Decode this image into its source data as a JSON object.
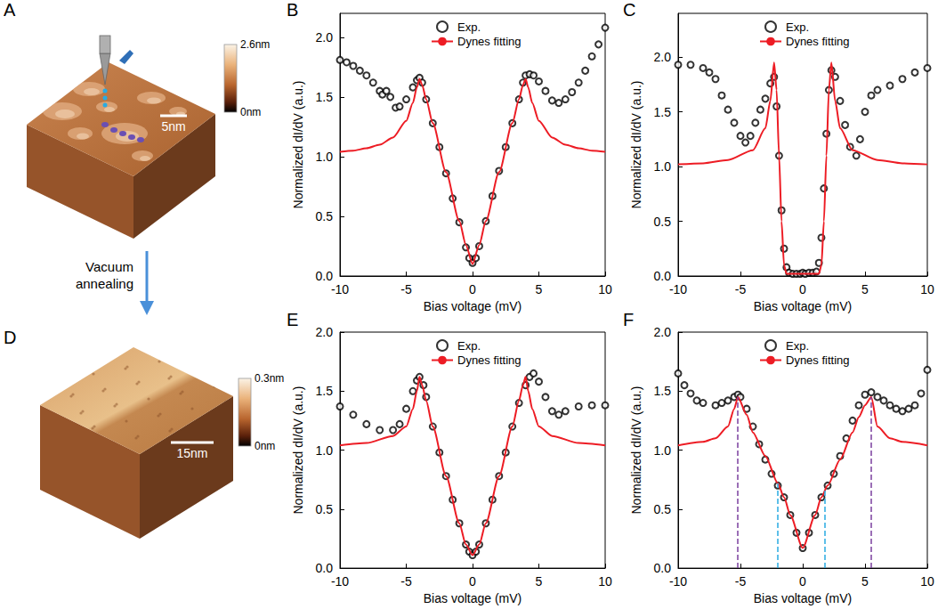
{
  "chart_data": [
    {
      "panel": "B",
      "type": "line",
      "x_label": "Bias voltage (mV)",
      "y_label": "Normalized dI/dV (a.u.)",
      "xlim": [
        -10,
        10
      ],
      "xticks": [
        -10,
        -5,
        0,
        5,
        10
      ],
      "ylim": [
        0,
        2.2
      ],
      "yticks": [
        {
          "value": 0,
          "label": "0.0"
        },
        {
          "value": 0.5,
          "label": "0.5"
        },
        {
          "value": 1,
          "label": "1.0"
        },
        {
          "value": 1.5,
          "label": "1.5"
        },
        {
          "value": 2,
          "label": "2.0"
        }
      ],
      "grid": false,
      "legend": "top",
      "series": [
        {
          "name": "Exp.",
          "type": "scatter",
          "marker": "circle_open",
          "color": "#000000",
          "x": [
            -10,
            -9.5,
            -9,
            -8.5,
            -8,
            -7.5,
            -7,
            -6.8,
            -6.5,
            -6.2,
            -5.8,
            -5.5,
            -5,
            -4.5,
            -4.2,
            -4,
            -3.8,
            -3.5,
            -3,
            -2.5,
            -2,
            -1.5,
            -1,
            -0.5,
            -0.25,
            0,
            0.25,
            0.5,
            1,
            1.5,
            2,
            2.5,
            3,
            3.5,
            3.8,
            4,
            4.3,
            4.6,
            5,
            5.5,
            6,
            6.5,
            7,
            7.5,
            8,
            8.5,
            9,
            9.5,
            10
          ],
          "values": [
            1.81,
            1.79,
            1.76,
            1.72,
            1.68,
            1.62,
            1.55,
            1.52,
            1.55,
            1.5,
            1.41,
            1.42,
            1.48,
            1.58,
            1.64,
            1.66,
            1.62,
            1.48,
            1.28,
            1.08,
            0.86,
            0.65,
            0.45,
            0.24,
            0.15,
            0.11,
            0.15,
            0.25,
            0.46,
            0.67,
            0.88,
            1.08,
            1.28,
            1.48,
            1.62,
            1.68,
            1.69,
            1.68,
            1.63,
            1.55,
            1.47,
            1.45,
            1.48,
            1.54,
            1.62,
            1.72,
            1.84,
            1.94,
            2.08
          ]
        },
        {
          "name": "Dynes fitting",
          "type": "line",
          "line_style": "solid",
          "color": "#ed1c24",
          "x": [
            -10,
            -9,
            -8,
            -7,
            -6,
            -5,
            -4.5,
            -4.2,
            -4,
            -3.8,
            -3.5,
            -3,
            -2,
            -1,
            -0.5,
            0,
            0.5,
            1,
            2,
            3,
            3.5,
            3.8,
            4,
            4.2,
            4.5,
            5,
            6,
            7,
            8,
            9,
            10
          ],
          "values": [
            1.04,
            1.05,
            1.07,
            1.1,
            1.16,
            1.3,
            1.45,
            1.58,
            1.65,
            1.6,
            1.48,
            1.28,
            0.87,
            0.46,
            0.26,
            0.1,
            0.26,
            0.46,
            0.87,
            1.28,
            1.48,
            1.6,
            1.65,
            1.58,
            1.45,
            1.3,
            1.16,
            1.1,
            1.07,
            1.05,
            1.04
          ]
        }
      ]
    },
    {
      "panel": "C",
      "type": "line",
      "x_label": "Bias voltage (mV)",
      "y_label": "Normalized dI/dV (a.u.)",
      "xlim": [
        -10,
        10
      ],
      "xticks": [
        -10,
        -5,
        0,
        5,
        10
      ],
      "ylim": [
        0,
        2.4
      ],
      "yticks": [
        {
          "value": 0,
          "label": "0.0"
        },
        {
          "value": 0.5,
          "label": "0.5"
        },
        {
          "value": 1,
          "label": "1.0"
        },
        {
          "value": 1.5,
          "label": "1.5"
        },
        {
          "value": 2,
          "label": "2.0"
        }
      ],
      "grid": false,
      "legend": "top",
      "series": [
        {
          "name": "Exp.",
          "type": "scatter",
          "marker": "circle_open",
          "color": "#000000",
          "x": [
            -10,
            -9,
            -8,
            -7.5,
            -7,
            -6.5,
            -6,
            -5.5,
            -5,
            -4.6,
            -4.2,
            -3.8,
            -3.4,
            -3,
            -2.6,
            -2.3,
            -2.1,
            -1.9,
            -1.7,
            -1.5,
            -1.3,
            -1.1,
            -0.8,
            -0.5,
            -0.2,
            0,
            0.2,
            0.5,
            0.8,
            1.1,
            1.3,
            1.5,
            1.7,
            1.9,
            2.1,
            2.3,
            2.6,
            3,
            3.4,
            3.8,
            4.3,
            4.6,
            5,
            5.5,
            6,
            7,
            8,
            9,
            10
          ],
          "values": [
            1.93,
            1.93,
            1.9,
            1.86,
            1.8,
            1.65,
            1.52,
            1.4,
            1.28,
            1.22,
            1.28,
            1.4,
            1.52,
            1.62,
            1.76,
            1.82,
            1.55,
            1.1,
            0.6,
            0.25,
            0.08,
            0.03,
            0.02,
            0.02,
            0.02,
            0.03,
            0.02,
            0.03,
            0.03,
            0.04,
            0.12,
            0.35,
            0.8,
            1.3,
            1.7,
            1.88,
            1.82,
            1.6,
            1.38,
            1.18,
            1.1,
            1.25,
            1.5,
            1.65,
            1.7,
            1.74,
            1.8,
            1.86,
            1.9
          ]
        },
        {
          "name": "Dynes fitting",
          "type": "line",
          "line_style": "solid",
          "color": "#ed1c24",
          "x": [
            -10,
            -8,
            -6,
            -4,
            -3,
            -2.6,
            -2.3,
            -2.1,
            -1.9,
            -1.7,
            -1.5,
            -1.3,
            -1,
            0,
            1,
            1.3,
            1.5,
            1.7,
            1.9,
            2.1,
            2.3,
            2.6,
            3,
            4,
            6,
            8,
            10
          ],
          "values": [
            1.02,
            1.03,
            1.06,
            1.15,
            1.35,
            1.6,
            1.95,
            1.7,
            1.1,
            0.5,
            0.1,
            0.02,
            0.02,
            0.02,
            0.02,
            0.02,
            0.1,
            0.5,
            1.1,
            1.7,
            1.95,
            1.6,
            1.35,
            1.15,
            1.06,
            1.03,
            1.02
          ]
        }
      ]
    },
    {
      "panel": "E",
      "type": "line",
      "x_label": "Bias voltage (mV)",
      "y_label": "Normalized dI/dV (a.u.)",
      "xlim": [
        -10,
        10
      ],
      "xticks": [
        -10,
        -5,
        0,
        5,
        10
      ],
      "ylim": [
        0,
        2
      ],
      "yticks": [
        {
          "value": 0,
          "label": "0.0"
        },
        {
          "value": 0.5,
          "label": "0.5"
        },
        {
          "value": 1,
          "label": "1.0"
        },
        {
          "value": 1.5,
          "label": "1.5"
        },
        {
          "value": 2,
          "label": "2.0"
        }
      ],
      "grid": false,
      "legend": "top",
      "series": [
        {
          "name": "Exp.",
          "type": "scatter",
          "marker": "circle_open",
          "color": "#000000",
          "x": [
            -10,
            -9,
            -8,
            -7,
            -6,
            -5.5,
            -5,
            -4.5,
            -4.2,
            -4,
            -3.7,
            -3.5,
            -3,
            -2.5,
            -2,
            -1.5,
            -1,
            -0.5,
            -0.25,
            0,
            0.25,
            0.5,
            1,
            1.5,
            2,
            2.5,
            3,
            3.5,
            4,
            4.3,
            4.6,
            5,
            5.5,
            6,
            6.5,
            7,
            8,
            9,
            10
          ],
          "values": [
            1.37,
            1.3,
            1.22,
            1.17,
            1.17,
            1.22,
            1.35,
            1.5,
            1.59,
            1.62,
            1.55,
            1.45,
            1.2,
            0.98,
            0.78,
            0.58,
            0.38,
            0.2,
            0.14,
            0.11,
            0.14,
            0.2,
            0.38,
            0.58,
            0.78,
            0.98,
            1.2,
            1.4,
            1.55,
            1.62,
            1.65,
            1.58,
            1.45,
            1.33,
            1.3,
            1.33,
            1.37,
            1.38,
            1.38
          ]
        },
        {
          "name": "Dynes fitting",
          "type": "line",
          "line_style": "solid",
          "color": "#ed1c24",
          "x": [
            -10,
            -8,
            -6,
            -5,
            -4.5,
            -4.2,
            -4,
            -3.8,
            -3.5,
            -3,
            -2,
            -1,
            -0.5,
            0,
            0.5,
            1,
            2,
            3,
            3.5,
            3.8,
            4,
            4.2,
            4.5,
            5,
            6,
            8,
            10
          ],
          "values": [
            1.04,
            1.06,
            1.12,
            1.2,
            1.35,
            1.5,
            1.62,
            1.55,
            1.42,
            1.2,
            0.78,
            0.38,
            0.2,
            0.11,
            0.2,
            0.38,
            0.78,
            1.2,
            1.42,
            1.55,
            1.62,
            1.5,
            1.35,
            1.2,
            1.12,
            1.06,
            1.04
          ]
        }
      ]
    },
    {
      "panel": "F",
      "type": "line",
      "x_label": "Bias voltage (mV)",
      "y_label": "Normalized dI/dV (a.u.)",
      "xlim": [
        -10,
        10
      ],
      "xticks": [
        -10,
        -5,
        0,
        5,
        10
      ],
      "ylim": [
        0,
        2
      ],
      "yticks": [
        {
          "value": 0,
          "label": "0.0"
        },
        {
          "value": 0.5,
          "label": "0.5"
        },
        {
          "value": 1,
          "label": "1.0"
        },
        {
          "value": 1.5,
          "label": "1.5"
        },
        {
          "value": 2,
          "label": "2.0"
        }
      ],
      "grid": false,
      "legend": "top",
      "series": [
        {
          "name": "Exp.",
          "type": "scatter",
          "marker": "circle_open",
          "color": "#000000",
          "x": [
            -10,
            -9.5,
            -9,
            -8.5,
            -8,
            -7,
            -6.5,
            -6,
            -5.5,
            -5.2,
            -5,
            -4.5,
            -4,
            -3.5,
            -3,
            -2.5,
            -2,
            -1.5,
            -1,
            -0.5,
            0,
            0.5,
            1,
            1.5,
            2,
            2.5,
            3,
            3.5,
            4,
            4.5,
            5,
            5.5,
            6,
            6.5,
            7,
            7.5,
            8,
            8.5,
            9,
            9.5,
            10
          ],
          "values": [
            1.65,
            1.55,
            1.48,
            1.42,
            1.4,
            1.38,
            1.4,
            1.42,
            1.45,
            1.47,
            1.45,
            1.35,
            1.2,
            1.05,
            0.92,
            0.8,
            0.7,
            0.6,
            0.45,
            0.3,
            0.17,
            0.3,
            0.45,
            0.6,
            0.7,
            0.8,
            0.95,
            1.1,
            1.25,
            1.38,
            1.47,
            1.49,
            1.45,
            1.42,
            1.38,
            1.35,
            1.33,
            1.35,
            1.38,
            1.48,
            1.68
          ]
        },
        {
          "name": "Dynes fitting",
          "type": "line",
          "line_style": "solid",
          "color": "#ed1c24",
          "x": [
            -10,
            -8,
            -7,
            -6,
            -5.5,
            -5.2,
            -4.5,
            -4,
            -3,
            -2,
            -1.5,
            -1,
            0,
            1,
            1.5,
            2,
            3,
            4,
            4.5,
            5,
            5.5,
            6,
            7,
            8,
            10
          ],
          "values": [
            1.04,
            1.07,
            1.1,
            1.2,
            1.35,
            1.45,
            1.3,
            1.15,
            0.95,
            0.72,
            0.6,
            0.45,
            0.17,
            0.45,
            0.6,
            0.7,
            0.92,
            1.15,
            1.28,
            1.38,
            1.45,
            1.2,
            1.1,
            1.07,
            1.04
          ]
        }
      ],
      "reference_lines": [
        {
          "x": -5.2,
          "y": [
            0,
            1.45
          ],
          "color": "#7b3f9e",
          "line_style": "dashed"
        },
        {
          "x": 5.5,
          "y": [
            0,
            1.45
          ],
          "color": "#7b3f9e",
          "line_style": "dashed"
        },
        {
          "x": -2.0,
          "y": [
            0,
            0.72
          ],
          "color": "#29abe2",
          "line_style": "dashed"
        },
        {
          "x": 1.8,
          "y": [
            0,
            0.66
          ],
          "color": "#29abe2",
          "line_style": "dashed"
        }
      ]
    }
  ],
  "images": [
    {
      "panel": "A",
      "scale_bar": {
        "value": 5,
        "label": "5nm"
      },
      "colorbar": {
        "range": [
          0,
          2.6
        ],
        "ticks": [
          {
            "value": 0,
            "label": "0nm"
          },
          {
            "value": 2.6,
            "label": "2.6nm"
          }
        ]
      }
    },
    {
      "panel": "D",
      "scale_bar": {
        "value": 15,
        "label": "15nm"
      },
      "colorbar": {
        "range": [
          0,
          0.3
        ],
        "ticks": [
          {
            "value": 0,
            "label": "0nm"
          },
          {
            "value": 0.3,
            "label": "0.3nm"
          }
        ]
      }
    }
  ],
  "annotation": "Vacuum annealing"
}
